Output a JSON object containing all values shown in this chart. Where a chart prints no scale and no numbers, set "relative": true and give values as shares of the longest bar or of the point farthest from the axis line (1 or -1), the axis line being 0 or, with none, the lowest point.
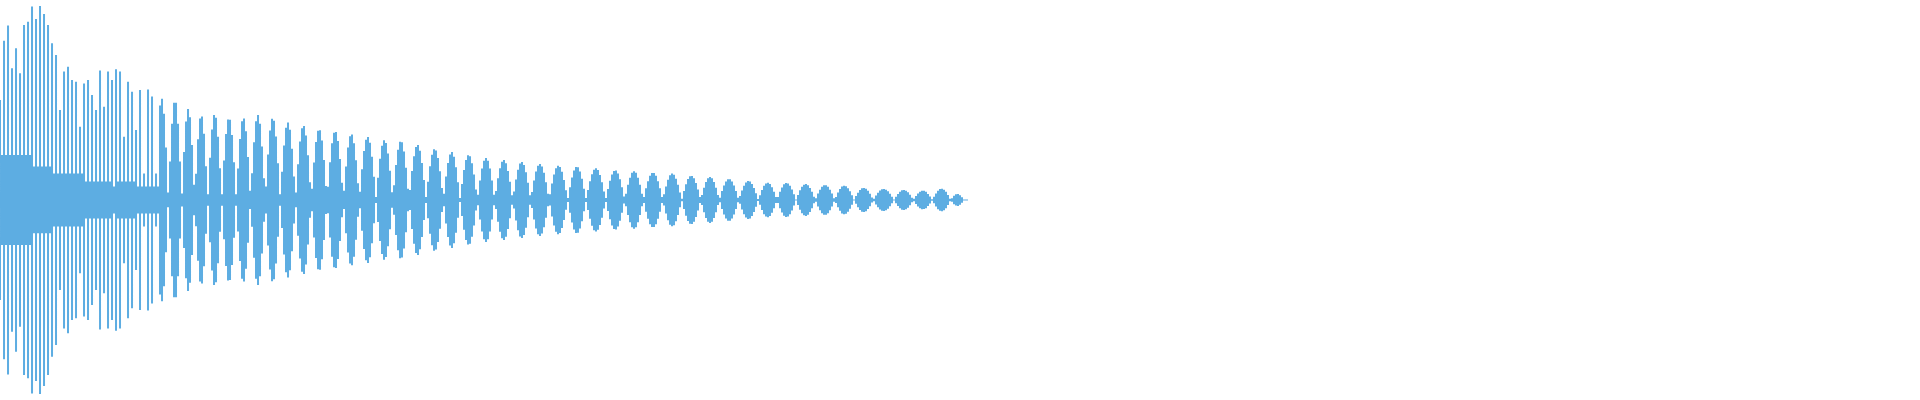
{
  "chart_data": {
    "type": "area",
    "relative": true,
    "ref_lines": [
      {
        "axis": "y",
        "value": 0,
        "color": "#5dade2"
      }
    ],
    "categories": [
      null,
      null,
      null,
      null,
      null,
      null,
      null,
      null,
      null,
      null,
      null,
      null,
      null,
      null,
      null,
      null,
      null,
      null,
      null,
      null,
      null,
      null,
      null,
      null,
      null,
      null,
      null,
      null,
      null,
      null,
      null,
      null,
      null,
      null,
      null,
      null,
      null,
      null,
      null,
      null,
      null,
      null,
      null,
      null,
      null,
      null,
      null,
      null,
      null,
      null,
      null,
      null,
      null,
      null,
      null,
      null,
      null,
      null,
      null,
      null,
      null,
      null,
      null,
      null,
      null,
      null,
      null,
      null,
      null,
      null,
      null,
      null,
      null,
      null,
      null,
      null,
      null,
      null,
      null,
      null,
      null,
      null,
      null,
      null,
      null,
      null,
      null,
      null,
      null,
      null,
      null,
      null,
      null,
      null,
      null,
      null,
      null,
      null,
      null,
      null,
      null,
      null,
      null,
      null,
      null,
      null,
      null,
      null,
      null,
      null,
      null,
      null,
      null,
      null,
      null,
      null,
      null,
      null,
      null,
      null,
      null,
      null,
      null,
      null,
      null,
      null,
      null,
      null,
      null,
      null,
      null,
      null,
      null,
      null,
      null,
      null,
      null,
      null,
      null,
      null,
      null,
      null,
      null,
      null,
      null,
      null,
      null,
      null,
      null,
      null,
      null,
      null,
      null,
      null,
      null,
      null,
      null,
      null,
      null,
      null,
      null,
      null,
      null,
      null,
      null,
      null,
      null,
      null,
      null,
      null,
      null,
      null,
      null,
      null,
      null,
      null,
      null,
      null,
      null,
      null,
      null,
      null,
      null,
      null,
      null,
      null,
      null,
      null,
      null,
      null,
      null,
      null,
      null,
      null,
      null,
      null,
      null,
      null,
      null,
      null,
      null,
      null,
      null,
      null,
      null,
      null,
      null,
      null,
      null,
      null,
      null,
      null,
      null,
      null,
      null,
      null,
      null,
      null,
      null,
      null,
      null,
      null,
      null,
      null,
      null,
      null,
      null,
      null,
      null,
      null,
      null,
      null,
      null,
      null,
      null,
      null,
      null,
      null,
      null,
      null,
      null,
      null,
      null,
      null,
      null,
      null,
      null,
      null,
      null,
      null,
      null,
      null,
      null,
      null,
      null,
      null,
      null,
      null,
      null,
      null,
      null,
      null,
      null,
      null,
      null,
      null,
      null,
      null,
      null,
      null,
      null,
      null,
      null,
      null,
      null,
      null,
      null,
      null,
      null,
      null,
      null,
      null,
      null,
      null,
      null,
      null,
      null,
      null,
      null,
      null,
      null,
      null,
      null,
      null,
      null,
      null,
      null,
      null,
      null,
      null,
      null,
      null,
      null,
      null,
      null,
      null,
      null,
      null,
      null,
      null,
      null,
      null,
      null,
      null,
      null,
      null,
      null,
      null,
      null,
      null,
      null,
      null,
      null,
      null,
      null,
      null,
      null,
      null,
      null,
      null,
      null,
      null,
      null,
      null,
      null,
      null,
      null,
      null,
      null,
      null,
      null,
      null,
      null,
      null,
      null,
      null,
      null,
      null,
      null,
      null,
      null,
      null,
      null,
      null,
      null,
      null,
      null,
      null,
      null,
      null,
      null,
      null,
      null,
      null,
      null,
      null,
      null,
      null,
      null,
      null,
      null,
      null,
      null,
      null,
      null,
      null,
      null,
      null,
      null,
      null,
      null,
      null,
      null,
      null,
      null,
      null,
      null,
      null,
      null,
      null,
      null,
      null,
      null,
      null,
      null,
      null,
      null,
      null,
      null,
      null,
      null,
      null,
      null,
      null,
      null,
      null,
      null,
      null,
      null,
      null,
      null,
      null,
      null,
      null,
      null,
      null,
      null,
      null,
      null,
      null,
      null,
      null,
      null,
      null,
      null,
      null,
      null,
      null,
      null,
      null,
      null,
      null,
      null,
      null,
      null,
      null,
      null,
      null,
      null,
      null,
      null,
      null,
      null,
      null,
      null,
      null,
      null,
      null,
      null,
      null,
      null,
      null,
      null,
      null,
      null,
      null,
      null,
      null,
      null,
      null,
      null,
      null,
      null,
      null,
      null,
      null,
      null,
      null,
      null,
      null,
      null,
      null,
      null,
      null,
      null,
      null,
      null,
      null,
      null,
      null,
      null,
      null,
      null,
      null,
      null
    ],
    "series": [
      {
        "color": "#5dade2",
        "values": [
          0.515,
          0.232,
          0.821,
          0.232,
          0.899,
          0.232,
          0.679,
          0.232,
          0.782,
          0.232,
          0.653,
          0.232,
          0.902,
          0.232,
          0.919,
          0.232,
          0.997,
          0.172,
          0.933,
          0.172,
          1.0,
          0.172,
          0.959,
          0.172,
          0.902,
          0.172,
          0.808,
          0.137,
          0.747,
          0.137,
          0.464,
          0.137,
          0.662,
          0.137,
          0.687,
          0.137,
          0.619,
          0.137,
          0.61,
          0.137,
          0.378,
          0.137,
          0.601,
          0.095,
          0.619,
          0.095,
          0.541,
          0.095,
          0.464,
          0.095,
          0.667,
          0.095,
          0.481,
          0.095,
          0.662,
          0.095,
          0.619,
          0.069,
          0.674,
          0.095,
          0.662,
          0.095,
          0.326,
          0.095,
          0.61,
          0.095,
          0.558,
          0.095,
          0.361,
          0.069,
          0.567,
          0.069,
          0.137,
          0.069,
          0.57,
          0.069,
          0.533,
          0.069,
          0.137,
          0.069,
          0.487,
          0.522,
          0.445,
          0.27,
          0.038,
          0.199,
          0.393,
          0.501,
          0.501,
          0.393,
          0.199,
          0.034,
          0.247,
          0.404,
          0.469,
          0.426,
          0.284,
          0.079,
          0.135,
          0.313,
          0.42,
          0.43,
          0.342,
          0.174,
          0.03,
          0.218,
          0.364,
          0.438,
          0.424,
          0.326,
          0.164,
          0.03,
          0.203,
          0.34,
          0.415,
          0.413,
          0.335,
          0.195,
          0.03,
          0.162,
          0.315,
          0.406,
          0.42,
          0.354,
          0.221,
          0.047,
          0.138,
          0.298,
          0.406,
          0.438,
          0.393,
          0.276,
          0.112,
          0.07,
          0.234,
          0.358,
          0.419,
          0.408,
          0.327,
          0.189,
          0.03,
          0.145,
          0.281,
          0.372,
          0.4,
          0.362,
          0.264,
          0.121,
          0.038,
          0.184,
          0.301,
          0.37,
          0.382,
          0.332,
          0.23,
          0.091,
          0.058,
          0.193,
          0.299,
          0.357,
          0.36,
          0.306,
          0.206,
          0.072,
          0.068,
          0.194,
          0.293,
          0.347,
          0.351,
          0.304,
          0.211,
          0.089,
          0.047,
          0.172,
          0.271,
          0.328,
          0.337,
          0.293,
          0.205,
          0.086,
          0.043,
          0.159,
          0.252,
          0.31,
          0.325,
          0.295,
          0.223,
          0.12,
          0.015,
          0.114,
          0.212,
          0.279,
          0.308,
          0.294,
          0.239,
          0.151,
          0.04,
          0.076,
          0.18,
          0.259,
          0.3,
          0.297,
          0.25,
          0.166,
          0.058,
          0.052,
          0.149,
          0.226,
          0.273,
          0.283,
          0.254,
          0.191,
          0.103,
          0.015,
          0.094,
          0.174,
          0.233,
          0.261,
          0.255,
          0.216,
          0.148,
          0.062,
          0.032,
          0.121,
          0.191,
          0.235,
          0.247,
          0.223,
          0.169,
          0.091,
          0.01,
          0.083,
          0.154,
          0.206,
          0.23,
          0.225,
          0.19,
          0.131,
          0.054,
          0.027,
          0.101,
          0.162,
          0.202,
          0.216,
          0.202,
          0.162,
          0.101,
          0.027,
          0.046,
          0.112,
          0.164,
          0.197,
          0.206,
          0.19,
          0.15,
          0.094,
          0.025,
          0.044,
          0.106,
          0.156,
          0.188,
          0.196,
          0.181,
          0.143,
          0.089,
          0.024,
          0.041,
          0.1,
          0.147,
          0.177,
          0.186,
          0.173,
          0.141,
          0.092,
          0.032,
          0.029,
          0.085,
          0.132,
          0.164,
          0.177,
          0.17,
          0.145,
          0.103,
          0.05,
          0.01,
          0.066,
          0.116,
          0.152,
          0.17,
          0.169,
          0.147,
          0.109,
          0.058,
          0.01,
          0.051,
          0.097,
          0.133,
          0.156,
          0.163,
          0.154,
          0.129,
          0.091,
          0.044,
          0.01,
          0.057,
          0.099,
          0.132,
          0.15,
          0.152,
          0.137,
          0.107,
          0.066,
          0.018,
          0.032,
          0.078,
          0.115,
          0.14,
          0.148,
          0.14,
          0.115,
          0.078,
          0.032,
          0.016,
          0.06,
          0.097,
          0.125,
          0.139,
          0.139,
          0.125,
          0.097,
          0.06,
          0.016,
          0.029,
          0.07,
          0.104,
          0.127,
          0.136,
          0.13,
          0.11,
          0.078,
          0.038,
          0.006,
          0.046,
          0.081,
          0.108,
          0.123,
          0.124,
          0.112,
          0.088,
          0.054,
          0.015,
          0.026,
          0.063,
          0.093,
          0.112,
          0.119,
          0.112,
          0.093,
          0.063,
          0.026,
          0.012,
          0.046,
          0.075,
          0.095,
          0.107,
          0.107,
          0.095,
          0.075,
          0.046,
          0.012,
          0.02,
          0.049,
          0.074,
          0.09,
          0.098,
          0.095,
          0.083,
          0.062,
          0.035,
          0.005,
          0.025,
          0.052,
          0.073,
          0.085,
          0.089,
          0.082,
          0.066,
          0.043,
          0.015,
          0.015,
          0.042,
          0.065,
          0.081,
          0.088,
          0.085,
          0.074,
          0.054,
          0.029,
          0,
          0.026,
          0.05,
          0.068,
          0.079,
          0.082,
          0.076,
          0.062,
          0.042,
          0.017,
          0.009,
          0.033,
          0.053,
          0.068,
          0.076,
          0.076,
          0.068,
          0.053,
          0.033,
          0.009,
          0.015,
          0.038,
          0.056,
          0.069,
          0.074,
          0.071,
          0.061,
          0.045,
          0.024,
          0,
          0.02,
          0.037,
          0.051,
          0.06,
          0.062,
          0.058,
          0.047,
          0.032,
          0.013,
          0.006,
          0.023,
          0.037,
          0.049,
          0.055,
          0.057,
          0.053,
          0.045,
          0.032,
          0.017,
          0,
          0.017,
          0.031,
          0.043,
          0.05,
          0.052,
          0.048,
          0.04,
          0.027,
          0.011,
          0.006,
          0.021,
          0.034,
          0.043,
          0.048,
          0.047,
          0.042,
          0.031,
          0.018,
          0.002,
          0.017,
          0.034,
          0.048,
          0.056,
          0.058,
          0.053,
          0.042,
          0.026,
          0.007,
          0.009,
          0.022,
          0.029,
          0.031,
          0.025,
          0.014,
          0,
          0,
          0
        ]
      },
      {
        "color": "#5dade2",
        "values": [
          -0.515,
          -0.232,
          -0.821,
          -0.232,
          -0.899,
          -0.232,
          -0.679,
          -0.232,
          -0.782,
          -0.232,
          -0.653,
          -0.232,
          -0.902,
          -0.232,
          -0.919,
          -0.232,
          -0.997,
          -0.172,
          -0.933,
          -0.172,
          -1.0,
          -0.172,
          -0.959,
          -0.172,
          -0.902,
          -0.172,
          -0.808,
          -0.137,
          -0.747,
          -0.137,
          -0.464,
          -0.137,
          -0.662,
          -0.137,
          -0.687,
          -0.137,
          -0.619,
          -0.137,
          -0.61,
          -0.137,
          -0.378,
          -0.137,
          -0.601,
          -0.095,
          -0.619,
          -0.095,
          -0.541,
          -0.095,
          -0.464,
          -0.095,
          -0.667,
          -0.095,
          -0.481,
          -0.095,
          -0.662,
          -0.095,
          -0.619,
          -0.069,
          -0.674,
          -0.095,
          -0.662,
          -0.095,
          -0.326,
          -0.095,
          -0.61,
          -0.095,
          -0.558,
          -0.095,
          -0.361,
          -0.069,
          -0.567,
          -0.069,
          -0.137,
          -0.069,
          -0.57,
          -0.069,
          -0.533,
          -0.069,
          -0.137,
          -0.069,
          -0.487,
          -0.522,
          -0.445,
          -0.27,
          -0.038,
          -0.199,
          -0.393,
          -0.501,
          -0.501,
          -0.393,
          -0.199,
          -0.034,
          -0.247,
          -0.404,
          -0.469,
          -0.426,
          -0.284,
          -0.079,
          -0.135,
          -0.313,
          -0.42,
          -0.43,
          -0.342,
          -0.174,
          -0.03,
          -0.218,
          -0.364,
          -0.438,
          -0.424,
          -0.326,
          -0.164,
          -0.03,
          -0.203,
          -0.34,
          -0.415,
          -0.413,
          -0.335,
          -0.195,
          -0.03,
          -0.162,
          -0.315,
          -0.406,
          -0.42,
          -0.354,
          -0.221,
          -0.047,
          -0.138,
          -0.298,
          -0.406,
          -0.438,
          -0.393,
          -0.276,
          -0.112,
          -0.07,
          -0.234,
          -0.358,
          -0.419,
          -0.408,
          -0.327,
          -0.189,
          -0.03,
          -0.145,
          -0.281,
          -0.372,
          -0.4,
          -0.362,
          -0.264,
          -0.121,
          -0.038,
          -0.184,
          -0.301,
          -0.37,
          -0.382,
          -0.332,
          -0.23,
          -0.091,
          -0.058,
          -0.193,
          -0.299,
          -0.357,
          -0.36,
          -0.306,
          -0.206,
          -0.072,
          -0.068,
          -0.194,
          -0.293,
          -0.347,
          -0.351,
          -0.304,
          -0.211,
          -0.089,
          -0.047,
          -0.172,
          -0.271,
          -0.328,
          -0.337,
          -0.293,
          -0.205,
          -0.086,
          -0.043,
          -0.159,
          -0.252,
          -0.31,
          -0.325,
          -0.295,
          -0.223,
          -0.12,
          -0.015,
          -0.114,
          -0.212,
          -0.279,
          -0.308,
          -0.294,
          -0.239,
          -0.151,
          -0.04,
          -0.076,
          -0.18,
          -0.259,
          -0.3,
          -0.297,
          -0.25,
          -0.166,
          -0.058,
          -0.052,
          -0.149,
          -0.226,
          -0.273,
          -0.283,
          -0.254,
          -0.191,
          -0.103,
          -0.015,
          -0.094,
          -0.174,
          -0.233,
          -0.261,
          -0.255,
          -0.216,
          -0.148,
          -0.062,
          -0.032,
          -0.121,
          -0.191,
          -0.235,
          -0.247,
          -0.223,
          -0.169,
          -0.091,
          -0.01,
          -0.083,
          -0.154,
          -0.206,
          -0.23,
          -0.225,
          -0.19,
          -0.131,
          -0.054,
          -0.027,
          -0.101,
          -0.162,
          -0.202,
          -0.216,
          -0.202,
          -0.162,
          -0.101,
          -0.027,
          -0.046,
          -0.112,
          -0.164,
          -0.197,
          -0.206,
          -0.19,
          -0.15,
          -0.094,
          -0.025,
          -0.044,
          -0.106,
          -0.156,
          -0.188,
          -0.196,
          -0.181,
          -0.143,
          -0.089,
          -0.024,
          -0.041,
          -0.1,
          -0.147,
          -0.177,
          -0.186,
          -0.173,
          -0.141,
          -0.092,
          -0.032,
          -0.029,
          -0.085,
          -0.132,
          -0.164,
          -0.177,
          -0.17,
          -0.145,
          -0.103,
          -0.05,
          -0.01,
          -0.066,
          -0.116,
          -0.152,
          -0.17,
          -0.169,
          -0.147,
          -0.109,
          -0.058,
          -0.01,
          -0.051,
          -0.097,
          -0.133,
          -0.156,
          -0.163,
          -0.154,
          -0.129,
          -0.091,
          -0.044,
          -0.01,
          -0.057,
          -0.099,
          -0.132,
          -0.15,
          -0.152,
          -0.137,
          -0.107,
          -0.066,
          -0.018,
          -0.032,
          -0.078,
          -0.115,
          -0.14,
          -0.148,
          -0.14,
          -0.115,
          -0.078,
          -0.032,
          -0.016,
          -0.06,
          -0.097,
          -0.125,
          -0.139,
          -0.139,
          -0.125,
          -0.097,
          -0.06,
          -0.016,
          -0.029,
          -0.07,
          -0.104,
          -0.127,
          -0.136,
          -0.13,
          -0.11,
          -0.078,
          -0.038,
          -0.006,
          -0.046,
          -0.081,
          -0.108,
          -0.123,
          -0.124,
          -0.112,
          -0.088,
          -0.054,
          -0.015,
          -0.026,
          -0.063,
          -0.093,
          -0.112,
          -0.119,
          -0.112,
          -0.093,
          -0.063,
          -0.026,
          -0.012,
          -0.046,
          -0.075,
          -0.095,
          -0.107,
          -0.107,
          -0.095,
          -0.075,
          -0.046,
          -0.012,
          -0.02,
          -0.049,
          -0.074,
          -0.09,
          -0.098,
          -0.095,
          -0.083,
          -0.062,
          -0.035,
          -0.005,
          -0.025,
          -0.052,
          -0.073,
          -0.085,
          -0.089,
          -0.082,
          -0.066,
          -0.043,
          -0.015,
          -0.015,
          -0.042,
          -0.065,
          -0.081,
          -0.088,
          -0.085,
          -0.074,
          -0.054,
          -0.029,
          0,
          -0.026,
          -0.05,
          -0.068,
          -0.079,
          -0.082,
          -0.076,
          -0.062,
          -0.042,
          -0.017,
          -0.009,
          -0.033,
          -0.053,
          -0.068,
          -0.076,
          -0.076,
          -0.068,
          -0.053,
          -0.033,
          -0.009,
          -0.015,
          -0.038,
          -0.056,
          -0.069,
          -0.074,
          -0.071,
          -0.061,
          -0.045,
          -0.024,
          0,
          -0.02,
          -0.037,
          -0.051,
          -0.06,
          -0.062,
          -0.058,
          -0.047,
          -0.032,
          -0.013,
          -0.006,
          -0.023,
          -0.037,
          -0.049,
          -0.055,
          -0.057,
          -0.053,
          -0.045,
          -0.032,
          -0.017,
          0,
          -0.017,
          -0.031,
          -0.043,
          -0.05,
          -0.052,
          -0.048,
          -0.04,
          -0.027,
          -0.011,
          -0.006,
          -0.021,
          -0.034,
          -0.043,
          -0.048,
          -0.047,
          -0.042,
          -0.031,
          -0.018,
          -0.002,
          -0.017,
          -0.034,
          -0.048,
          -0.056,
          -0.058,
          -0.053,
          -0.042,
          -0.026,
          -0.007,
          -0.009,
          -0.022,
          -0.029,
          -0.031,
          -0.025,
          -0.014,
          0,
          0,
          0
        ]
      }
    ]
  }
}
